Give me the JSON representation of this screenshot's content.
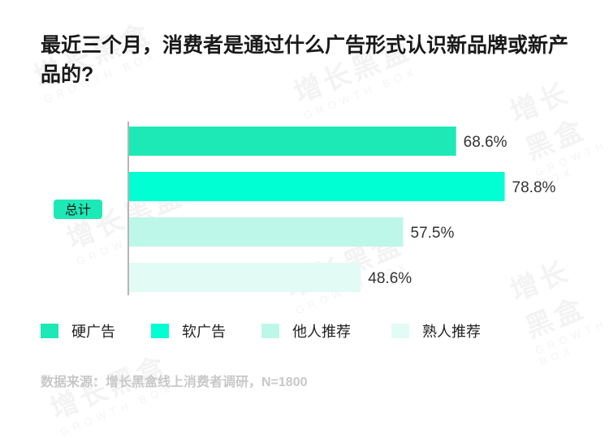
{
  "title": "最近三个月，消费者是通过什么广告形式认识新品牌或新产品的?",
  "source": "数据来源：增长黑盒线上消费者调研，N=1800",
  "watermark": {
    "brand": "增长黑盒",
    "sub": "GROWTH BOX"
  },
  "chart_data": {
    "type": "bar",
    "orientation": "horizontal",
    "categories": [
      "总计"
    ],
    "series": [
      {
        "name": "硬广告",
        "values": [
          68.6
        ],
        "color": "#1de9b6"
      },
      {
        "name": "软广告",
        "values": [
          78.8
        ],
        "color": "#00ffd2"
      },
      {
        "name": "他人推荐",
        "values": [
          57.5
        ],
        "color": "#bdf7ea"
      },
      {
        "name": "熟人推荐",
        "values": [
          48.6
        ],
        "color": "#e2fbf5"
      }
    ],
    "value_suffix": "%",
    "xlim": [
      0,
      100
    ],
    "legend_position": "bottom",
    "grid": false
  }
}
